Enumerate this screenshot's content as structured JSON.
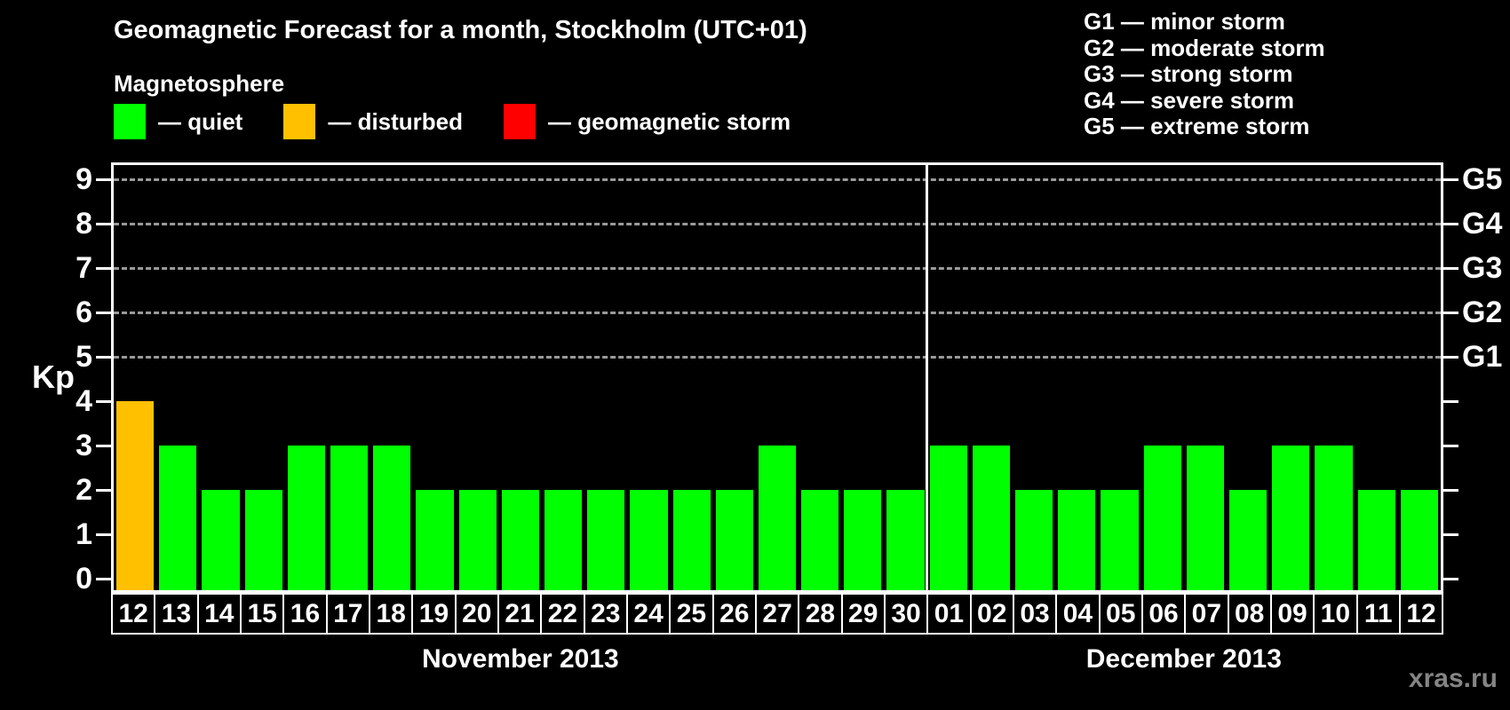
{
  "title": "Geomagnetic Forecast for a month, Stockholm (UTC+01)",
  "subtitle": "Magnetosphere",
  "legend": {
    "items": [
      {
        "name": "quiet",
        "label": "— quiet",
        "color": "#00FF00"
      },
      {
        "name": "disturbed",
        "label": "— disturbed",
        "color": "#FFC000"
      },
      {
        "name": "storm",
        "label": "— geomagnetic storm",
        "color": "#FF0000"
      }
    ]
  },
  "storm_scale_legend": [
    "G1 — minor storm",
    "G2 — moderate storm",
    "G3 — strong storm",
    "G4 — severe storm",
    "G5 — extreme storm"
  ],
  "watermark": "xras.ru",
  "chart_data": {
    "type": "bar",
    "title": "Geomagnetic Forecast for a month, Stockholm (UTC+01)",
    "xlabel": "",
    "ylabel": "Kp",
    "ylim": [
      0,
      9
    ],
    "y_ticks": [
      0,
      1,
      2,
      3,
      4,
      5,
      6,
      7,
      8,
      9
    ],
    "gridlines_at_kp": [
      5,
      6,
      7,
      8,
      9
    ],
    "grid": "dashed horizontal lines at Kp 5-9 only",
    "legend_position": "top-left",
    "right_axis_labels": [
      {
        "kp": 5,
        "label": "G1"
      },
      {
        "kp": 6,
        "label": "G2"
      },
      {
        "kp": 7,
        "label": "G3"
      },
      {
        "kp": 8,
        "label": "G4"
      },
      {
        "kp": 9,
        "label": "G5"
      }
    ],
    "color_rules": {
      "quiet_max_kp": 3,
      "disturbed_kp": 4,
      "storm_min_kp": 5
    },
    "months": [
      {
        "label": "November 2013",
        "days": [
          "12",
          "13",
          "14",
          "15",
          "16",
          "17",
          "18",
          "19",
          "20",
          "21",
          "22",
          "23",
          "24",
          "25",
          "26",
          "27",
          "28",
          "29",
          "30"
        ],
        "values": [
          4,
          3,
          2,
          2,
          3,
          3,
          3,
          2,
          2,
          2,
          2,
          2,
          2,
          2,
          2,
          3,
          2,
          2,
          2
        ]
      },
      {
        "label": "December 2013",
        "days": [
          "01",
          "02",
          "03",
          "04",
          "05",
          "06",
          "07",
          "08",
          "09",
          "10",
          "11",
          "12"
        ],
        "values": [
          3,
          3,
          2,
          2,
          2,
          3,
          3,
          2,
          3,
          3,
          2,
          2
        ]
      }
    ]
  }
}
